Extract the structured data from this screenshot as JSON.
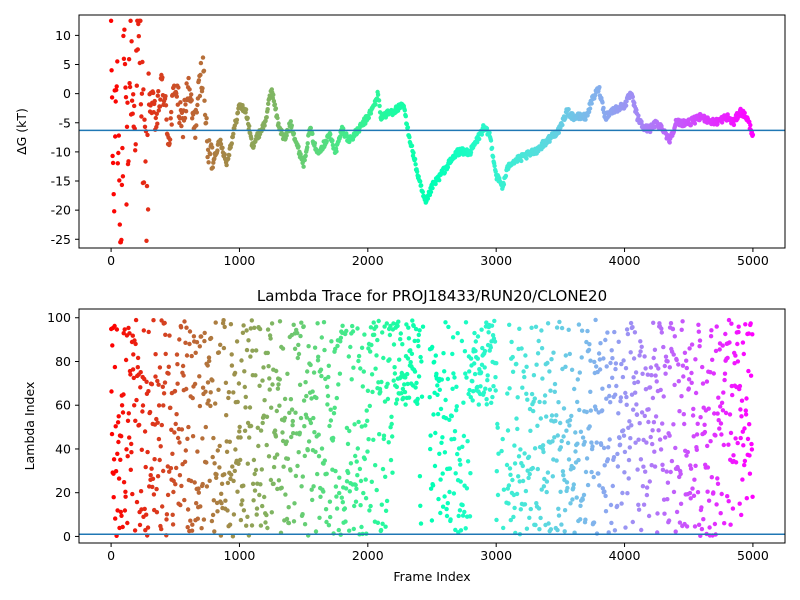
{
  "figure": {
    "background": "#ffffff",
    "axis_color": "#000000",
    "refline_color": "#1f77b4",
    "colormap": "rainbow"
  },
  "chart_data": [
    {
      "type": "scatter",
      "title": "",
      "xlabel": "",
      "ylabel": "ΔG (kT)",
      "xlim": [
        -250,
        5250
      ],
      "ylim": [
        -26.5,
        13.5
      ],
      "xticks": [
        0,
        1000,
        2000,
        3000,
        4000,
        5000
      ],
      "yticks": [
        10,
        5,
        0,
        -5,
        -10,
        -15,
        -20,
        -25
      ],
      "grid": false,
      "color_by": "frame index (rainbow, red at frame 0 to violet at frame 5000)",
      "reference_line_y": -6.3,
      "trace_anchors": [
        [
          0,
          10
        ],
        [
          20,
          -20
        ],
        [
          40,
          5
        ],
        [
          60,
          -10
        ],
        [
          80,
          -25
        ],
        [
          100,
          6
        ],
        [
          120,
          -15
        ],
        [
          150,
          8
        ],
        [
          180,
          -5
        ],
        [
          200,
          3
        ],
        [
          230,
          11
        ],
        [
          250,
          -8
        ],
        [
          280,
          -18
        ],
        [
          300,
          0
        ],
        [
          350,
          -5
        ],
        [
          400,
          2
        ],
        [
          450,
          -8
        ],
        [
          500,
          2
        ],
        [
          550,
          -6
        ],
        [
          600,
          1
        ],
        [
          650,
          -6
        ],
        [
          700,
          3
        ],
        [
          720,
          4
        ],
        [
          750,
          -10
        ],
        [
          800,
          -11
        ],
        [
          850,
          -8
        ],
        [
          900,
          -12
        ],
        [
          950,
          -7
        ],
        [
          1000,
          -2
        ],
        [
          1050,
          -3
        ],
        [
          1100,
          -9
        ],
        [
          1150,
          -7
        ],
        [
          1200,
          -5
        ],
        [
          1250,
          1
        ],
        [
          1300,
          -5
        ],
        [
          1350,
          -8
        ],
        [
          1400,
          -5
        ],
        [
          1450,
          -9
        ],
        [
          1500,
          -12
        ],
        [
          1550,
          -6
        ],
        [
          1600,
          -10
        ],
        [
          1650,
          -9
        ],
        [
          1700,
          -7
        ],
        [
          1750,
          -10
        ],
        [
          1800,
          -6
        ],
        [
          1850,
          -8
        ],
        [
          1900,
          -7
        ],
        [
          2000,
          -4
        ],
        [
          2050,
          -2
        ],
        [
          2080,
          0
        ],
        [
          2100,
          -4
        ],
        [
          2200,
          -3
        ],
        [
          2280,
          -2
        ],
        [
          2300,
          -5
        ],
        [
          2400,
          -15
        ],
        [
          2450,
          -19
        ],
        [
          2500,
          -16
        ],
        [
          2600,
          -13
        ],
        [
          2700,
          -10
        ],
        [
          2800,
          -10
        ],
        [
          2850,
          -8
        ],
        [
          2900,
          -6
        ],
        [
          2950,
          -7
        ],
        [
          3000,
          -14
        ],
        [
          3050,
          -16
        ],
        [
          3100,
          -12
        ],
        [
          3200,
          -11
        ],
        [
          3300,
          -10
        ],
        [
          3400,
          -8
        ],
        [
          3500,
          -6
        ],
        [
          3550,
          -3
        ],
        [
          3600,
          -4
        ],
        [
          3700,
          -4
        ],
        [
          3750,
          -1
        ],
        [
          3800,
          1
        ],
        [
          3850,
          -4
        ],
        [
          3900,
          -3
        ],
        [
          4000,
          -2
        ],
        [
          4050,
          0
        ],
        [
          4100,
          -4
        ],
        [
          4150,
          -6
        ],
        [
          4200,
          -6
        ],
        [
          4250,
          -5
        ],
        [
          4300,
          -6
        ],
        [
          4350,
          -8
        ],
        [
          4400,
          -5
        ],
        [
          4500,
          -5
        ],
        [
          4600,
          -4
        ],
        [
          4700,
          -5
        ],
        [
          4800,
          -4
        ],
        [
          4850,
          -5
        ],
        [
          4900,
          -3
        ],
        [
          4950,
          -4
        ],
        [
          5000,
          -7
        ]
      ]
    },
    {
      "type": "scatter",
      "title": "Lambda Trace for PROJ18433/RUN20/CLONE20",
      "xlabel": "Frame Index",
      "ylabel": "Lambda Index",
      "xlim": [
        -250,
        5250
      ],
      "ylim": [
        -3,
        104
      ],
      "xticks": [
        0,
        1000,
        2000,
        3000,
        4000,
        5000
      ],
      "yticks": [
        0,
        20,
        40,
        60,
        80,
        100
      ],
      "grid": false,
      "color_by": "frame index (rainbow, red at frame 0 to violet at frame 5000)",
      "lambda_range": [
        0,
        99
      ],
      "reference_line_y": 1,
      "dense_high_lambda_frames": [
        [
          2200,
          2400
        ],
        [
          2800,
          3000
        ]
      ],
      "sparse_gap_frames": [
        [
          2420,
          2480
        ],
        [
          3020,
          3080
        ]
      ]
    }
  ]
}
